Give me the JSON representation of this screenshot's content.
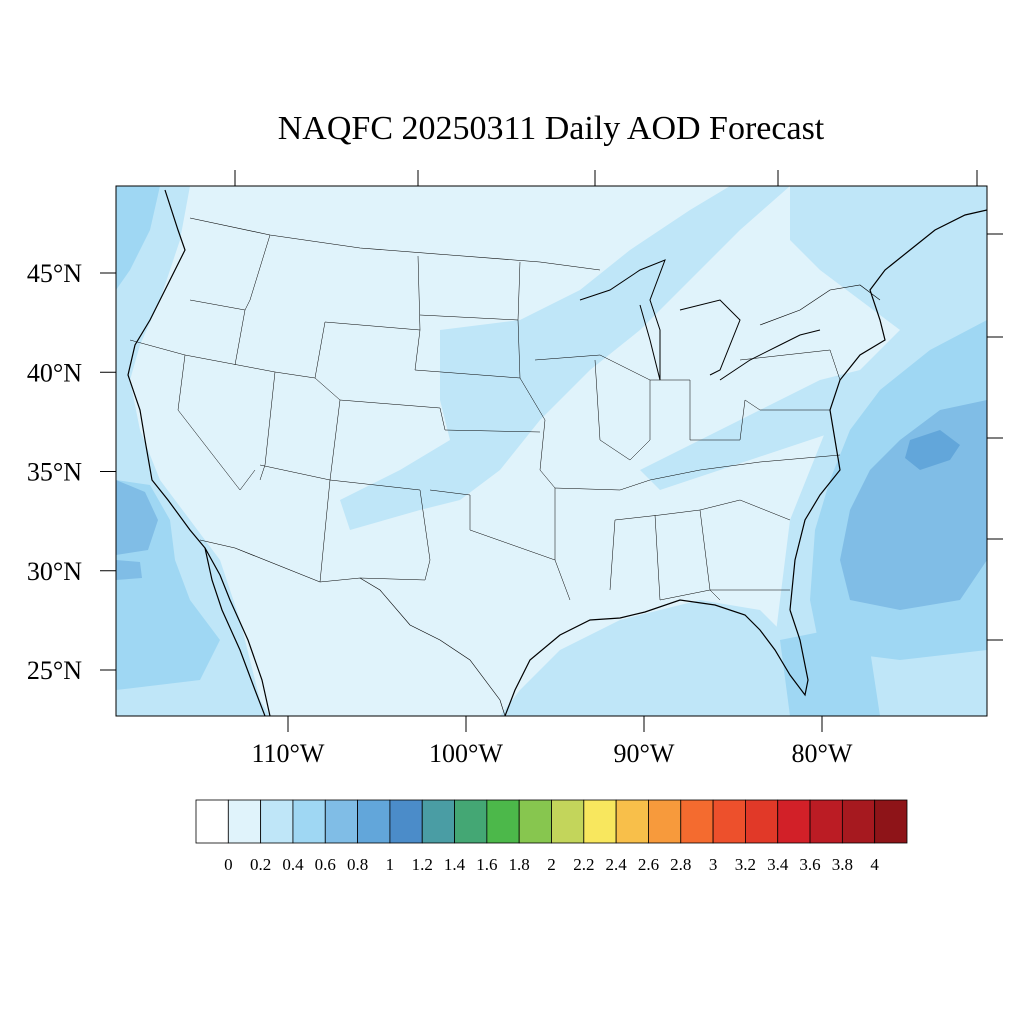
{
  "title": "NAQFC 20250311 Daily AOD Forecast",
  "map": {
    "lat_ticks": [
      {
        "value": 45,
        "label": "45°N"
      },
      {
        "value": 40,
        "label": "40°N"
      },
      {
        "value": 35,
        "label": "35°N"
      },
      {
        "value": 30,
        "label": "30°N"
      },
      {
        "value": 25,
        "label": "25°N"
      }
    ],
    "lon_ticks": [
      {
        "value": -110,
        "label": "110°W"
      },
      {
        "value": -100,
        "label": "100°W"
      },
      {
        "value": -90,
        "label": "90°W"
      },
      {
        "value": -80,
        "label": "80°W"
      }
    ],
    "domain": "CONUS, ~119°W to 71°W, ~22.5°N to 49°N"
  },
  "colorbar": {
    "labels": [
      "0",
      "0.2",
      "0.4",
      "0.6",
      "0.8",
      "1",
      "1.2",
      "1.4",
      "1.6",
      "1.8",
      "2",
      "2.2",
      "2.4",
      "2.6",
      "2.8",
      "3",
      "3.2",
      "3.4",
      "3.6",
      "3.8",
      "4"
    ],
    "colors": [
      "#ffffff",
      "#e0f3fb",
      "#bfe6f8",
      "#9fd7f3",
      "#80bde6",
      "#62a6da",
      "#4b8cc9",
      "#4a9da4",
      "#44a774",
      "#4cb84a",
      "#87c64f",
      "#c3d55b",
      "#f8e75e",
      "#f8bf4a",
      "#f79a3c",
      "#f46b2f",
      "#ed502c",
      "#e13928",
      "#d22028",
      "#bb1c24",
      "#a6191f",
      "#8e1418"
    ]
  },
  "chart_data": {
    "type": "heatmap",
    "title": "NAQFC 20250311 Daily AOD Forecast",
    "variable": "AOD",
    "lon_range": [
      -119,
      -71
    ],
    "lat_range": [
      22.5,
      49
    ],
    "levels": [
      0,
      0.2,
      0.4,
      0.6,
      0.8,
      1,
      1.2,
      1.4,
      1.6,
      1.8,
      2,
      2.2,
      2.4,
      2.6,
      2.8,
      3,
      3.2,
      3.4,
      3.6,
      3.8,
      4
    ],
    "regions": [
      {
        "name": "Most of CONUS interior",
        "aod_range": [
          0.0,
          0.2
        ]
      },
      {
        "name": "Central Plains / Midwest band",
        "aod_range": [
          0.2,
          0.4
        ]
      },
      {
        "name": "Pacific coast offshore",
        "aod_range": [
          0.2,
          0.8
        ]
      },
      {
        "name": "Atlantic offshore east of Carolinas",
        "aod_range": [
          0.4,
          0.8
        ]
      },
      {
        "name": "Gulf of Mexico / Florida",
        "aod_range": [
          0.2,
          0.6
        ]
      }
    ]
  }
}
